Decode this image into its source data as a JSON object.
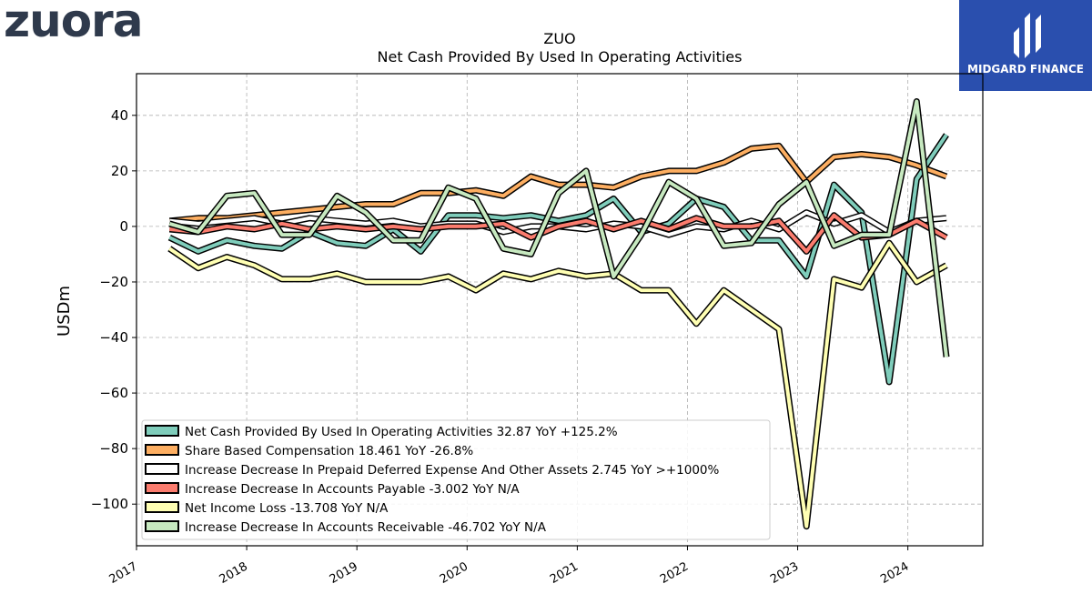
{
  "brand": {
    "logo_text": "zuora",
    "badge_text": "MIDGARD FINANCE"
  },
  "chart_data": {
    "type": "line",
    "title": "ZUO",
    "subtitle": "Net Cash Provided By Used In Operating Activities",
    "ylabel": "USDm",
    "xlabel": "",
    "ylim": [
      -115,
      55
    ],
    "xlim": [
      2017.0,
      2024.68
    ],
    "yticks": [
      40,
      20,
      0,
      -20,
      -40,
      -60,
      -80,
      -100
    ],
    "xticks": [
      "2017",
      "2018",
      "2019",
      "2020",
      "2021",
      "2022",
      "2023",
      "2024"
    ],
    "grid": true,
    "legend_position": "lower-left",
    "x": [
      2017.3,
      2017.56,
      2017.82,
      2018.07,
      2018.32,
      2018.57,
      2018.82,
      2019.08,
      2019.33,
      2019.58,
      2019.83,
      2020.08,
      2020.33,
      2020.58,
      2020.83,
      2021.08,
      2021.33,
      2021.58,
      2021.83,
      2022.08,
      2022.33,
      2022.58,
      2022.83,
      2023.08,
      2023.33,
      2023.58,
      2023.83,
      2024.08,
      2024.35
    ],
    "series": [
      {
        "name": "Net Cash Provided By Used In Operating Activities",
        "legend": "Net Cash Provided By Used In Operating Activities  32.87 YoY +125.2%",
        "color": "#7fcdbb",
        "values": [
          -4,
          -9,
          -5,
          -7,
          -8,
          -2,
          -6,
          -7,
          -1,
          -9,
          4,
          4,
          3,
          4,
          2,
          4,
          10,
          -2,
          1,
          10,
          7,
          -5,
          -5,
          -18,
          15,
          5,
          -56,
          17,
          33
        ]
      },
      {
        "name": "Share Based Compensation",
        "legend": "Share Based Compensation  18.461 YoY -26.8%",
        "color": "#fdae61",
        "values": [
          2,
          3,
          3,
          4,
          5,
          6,
          7,
          8,
          8,
          12,
          12,
          13,
          11,
          18,
          15,
          15,
          14,
          18,
          20,
          20,
          23,
          28,
          29,
          16,
          25,
          26,
          25,
          22,
          18
        ]
      },
      {
        "name": "Increase Decrease In Prepaid Deferred Expense And Other Assets",
        "legend": "Increase Decrease In Prepaid Deferred Expense And Other Assets  2.745 YoY >+1000%",
        "color": "#ffffff",
        "values": [
          2,
          1,
          2,
          3,
          1,
          3,
          2,
          1,
          2,
          0,
          1,
          1,
          -2,
          0,
          0,
          -1,
          1,
          0,
          -3,
          0,
          -1,
          2,
          -1,
          5,
          1,
          4,
          -2,
          2,
          3
        ]
      },
      {
        "name": "Increase Decrease In Accounts Payable",
        "legend": "Increase Decrease In Accounts Payable  -3.002 YoY N/A",
        "color": "#fb7c6e",
        "values": [
          -1,
          -2,
          0,
          -1,
          1,
          -1,
          0,
          -1,
          0,
          -1,
          0,
          0,
          1,
          -4,
          0,
          2,
          -1,
          2,
          -1,
          3,
          0,
          0,
          2,
          -9,
          4,
          -4,
          -3,
          2,
          -4
        ]
      },
      {
        "name": "Net Income Loss",
        "legend": "Net Income Loss  -13.708 YoY N/A",
        "color": "#ffffb3",
        "values": [
          -8,
          -15,
          -11,
          -14,
          -19,
          -19,
          -17,
          -20,
          -20,
          -20,
          -18,
          -23,
          -17,
          -19,
          -16,
          -18,
          -17,
          -23,
          -23,
          -35,
          -23,
          -30,
          -37,
          -108,
          -19,
          -22,
          -6,
          -20,
          -14
        ]
      },
      {
        "name": "Increase Decrease In Accounts Receivable",
        "legend": "Increase Decrease In Accounts Receivable  -46.702 YoY N/A",
        "color": "#c7e9c0",
        "values": [
          1,
          -2,
          11,
          12,
          -3,
          -3,
          11,
          5,
          -5,
          -5,
          14,
          10,
          -8,
          -10,
          12,
          20,
          -18,
          -3,
          16,
          10,
          -7,
          -6,
          8,
          16,
          -7,
          -3,
          -3,
          45,
          -47
        ]
      }
    ]
  }
}
